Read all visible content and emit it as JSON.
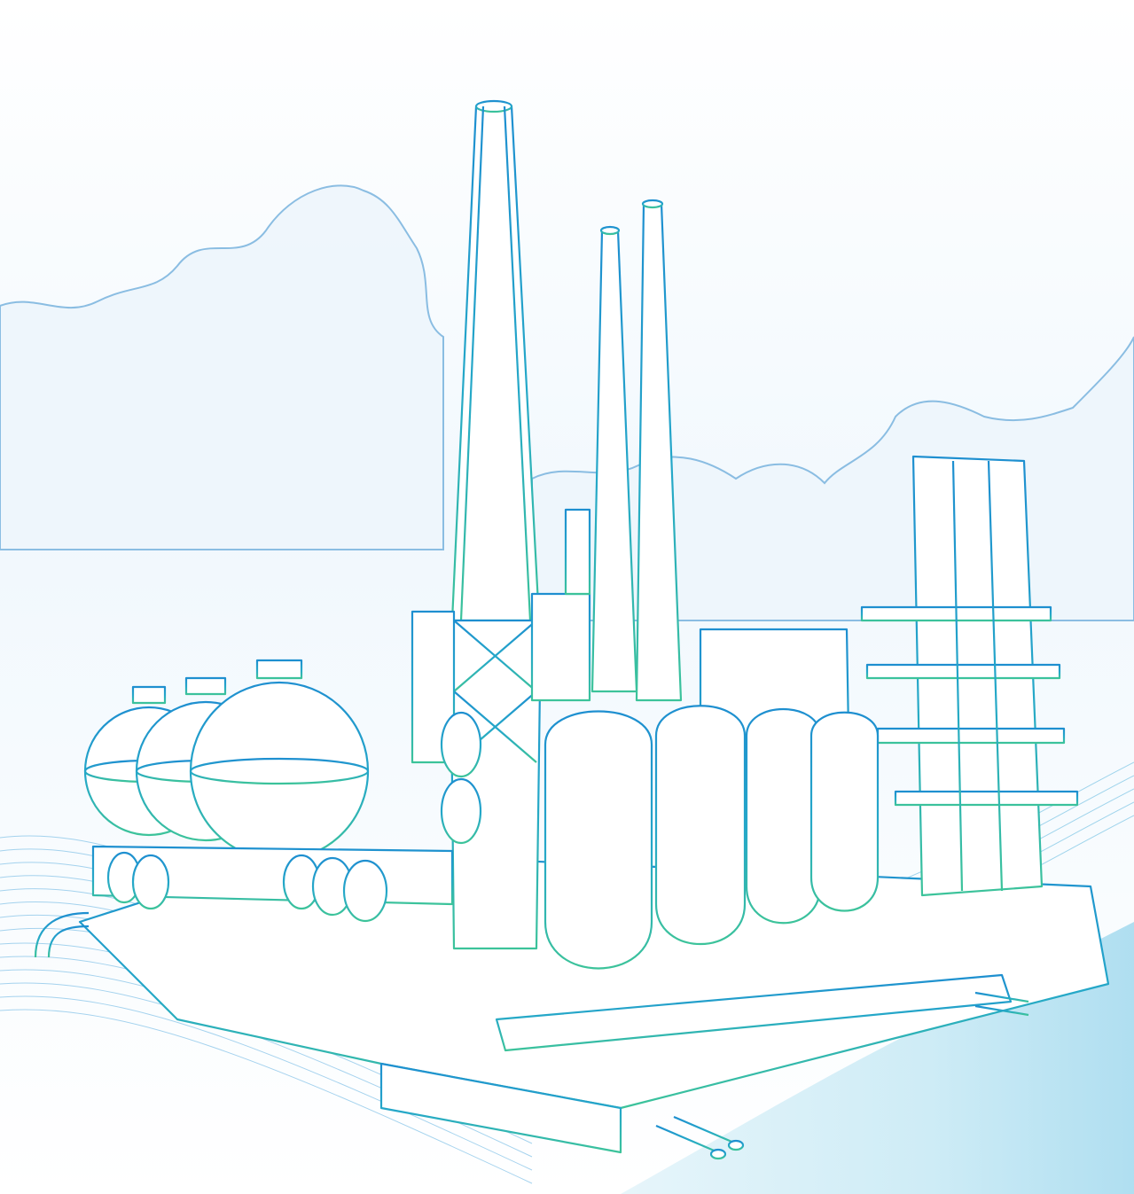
{
  "illustration": {
    "subject": "industrial-plant-line-drawing",
    "elements": [
      "sky",
      "clouds",
      "smokestack",
      "chimney",
      "distillation-tower",
      "spherical-tank",
      "horizontal-tank",
      "vertical-tank",
      "pipes",
      "wave-lines"
    ]
  },
  "colors": {
    "background": "#ffffff",
    "line_top": "#1e8fd0",
    "line_bottom": "#3cc39a",
    "cloud": "#7fb7e0",
    "cloud_fill": "#eef6fc",
    "wave": "#8fc8ea",
    "ground": "#bfe6f4"
  }
}
